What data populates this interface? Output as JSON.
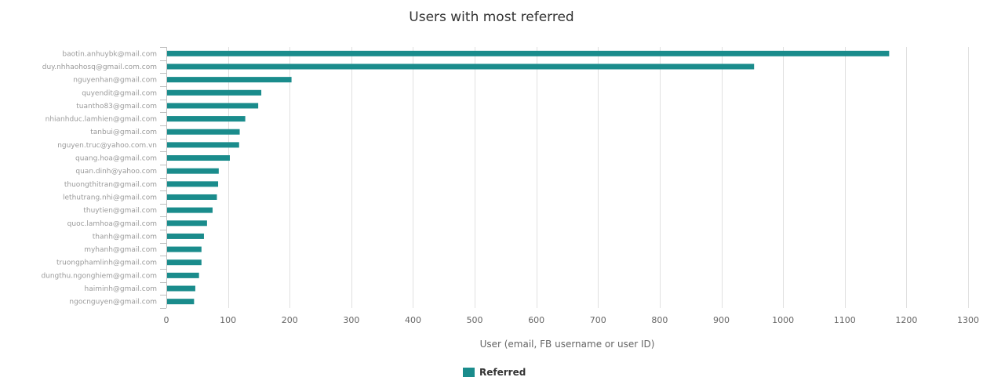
{
  "chart_data": {
    "type": "bar",
    "orientation": "horizontal",
    "title": "Users with most referred",
    "xlabel": "User (email, FB username or user ID)",
    "ylabel": "",
    "xlim": [
      0,
      1300
    ],
    "xticks": [
      0,
      100,
      200,
      300,
      400,
      500,
      600,
      700,
      800,
      900,
      1000,
      1100,
      1200,
      1300
    ],
    "grid": true,
    "legend_position": "bottom-center",
    "bar_color": "#1a8c8c",
    "categories": [
      "baotin.anhuybk@mail.com",
      "duy.nhhaohosq@gmail.com.com",
      "nguyenhan@gmail.com",
      "quyendit@gmail.com",
      "tuantho83@gmail.com",
      "nhianhduc.lamhien@gmail.com",
      "tanbui@gmail.com",
      "nguyen.truc@yahoo.com.vn",
      "quang.hoa@gmail.com",
      "quan.dinh@yahoo.com",
      "thuongthitran@gmail.com",
      "lethutrang.nhi@gmail.com",
      "thuytien@gmail.com",
      "quoc.lamhoa@gmail.com",
      "thanh@gmail.com",
      "myhanh@gmail.com",
      "truongphamlinh@gmail.com",
      "dungthu.ngonghiem@gmail.com",
      "haiminh@gmail.com",
      "ngocnguyen@gmail.com"
    ],
    "series": [
      {
        "name": "Referred",
        "values": [
          1172,
          953,
          203,
          154,
          149,
          128,
          119,
          118,
          103,
          85,
          84,
          82,
          75,
          66,
          61,
          57,
          57,
          53,
          47,
          45
        ]
      }
    ]
  }
}
